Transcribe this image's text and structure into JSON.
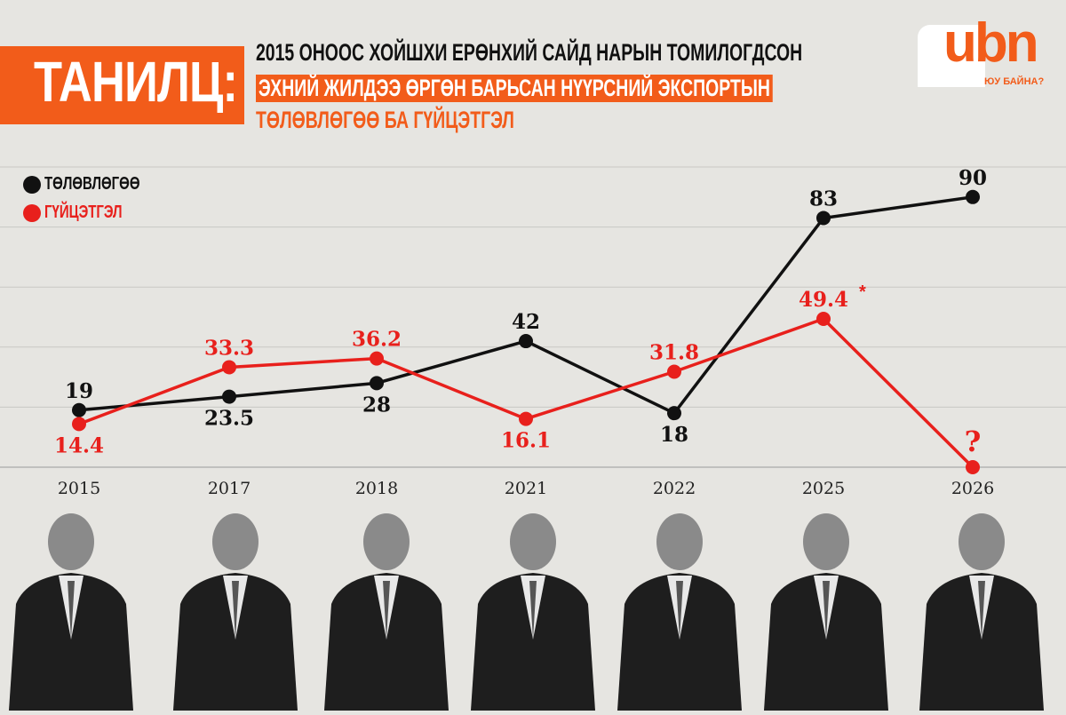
{
  "header": {
    "tag": "ТАНИЛЦ:",
    "line1": "2015 ОНООС ХОЙШХИ ЕРӨНХИЙ САЙД НАРЫН ТОМИЛОГДСОН",
    "line2": "ЭХНИЙ ЖИЛДЭЭ ӨРГӨН БАРЬСАН НҮҮРСНИЙ ЭКСПОРТЫН",
    "line3": "ТӨЛӨВЛӨГӨӨ БА ГҮЙЦЭТГЭЛ"
  },
  "logo": {
    "text": "ubn",
    "sub": "ЮУ БАЙНА?"
  },
  "chart_data": {
    "type": "line",
    "title": "2015 ОНООС ХОЙШХИ ЕРӨНХИЙ САЙД НАРЫН ТОМИЛОГДСОН ЭХНИЙ ЖИЛДЭЭ ӨРГӨН БАРЬСАН НҮҮРСНИЙ ЭКСПОРТЫН ТӨЛӨВЛӨГӨӨ БА ГҮЙЦЭТГЭЛ",
    "categories": [
      "2015",
      "2017",
      "2018",
      "2021",
      "2022",
      "2025",
      "2026"
    ],
    "ylim": [
      0,
      100
    ],
    "grid": true,
    "legend": "top-left",
    "series": [
      {
        "name": "ТӨЛӨВЛӨГӨӨ",
        "color": "#111111",
        "values": [
          19,
          23.5,
          28,
          42,
          18,
          83,
          90
        ],
        "labels": [
          "19",
          "23.5",
          "28",
          "42",
          "18",
          "83",
          "90"
        ]
      },
      {
        "name": "ГҮЙЦЭТГЭЛ",
        "color": "#e8201c",
        "values": [
          14.4,
          33.3,
          36.2,
          16.1,
          31.8,
          49.4,
          0
        ],
        "labels": [
          "14.4",
          "33.3",
          "36.2",
          "16.1",
          "31.8",
          "49.4",
          "?"
        ]
      }
    ],
    "annotations": [
      "*"
    ]
  }
}
